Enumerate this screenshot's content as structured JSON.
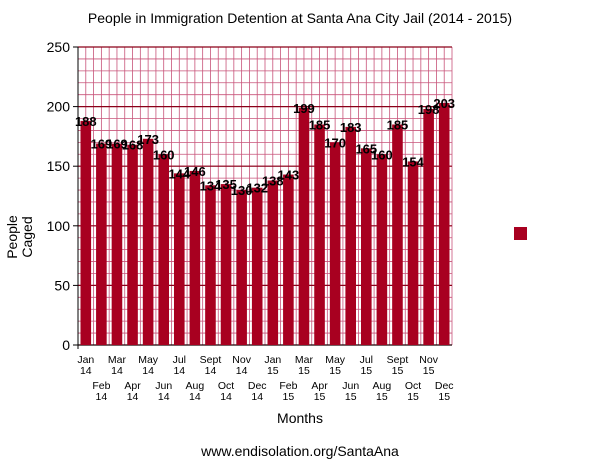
{
  "chart_data": {
    "type": "bar",
    "title": "People in Immigration Detention at Santa Ana City Jail (2014 - 2015)",
    "xlabel": "Months",
    "ylabel": [
      "People",
      "Caged"
    ],
    "source": "www.endisolation.org/SantaAna",
    "categories": [
      [
        "Jan",
        "14"
      ],
      [
        "Feb",
        "14"
      ],
      [
        "Mar",
        "14"
      ],
      [
        "Apr",
        "14"
      ],
      [
        "May",
        "14"
      ],
      [
        "Jun",
        "14"
      ],
      [
        "Jul",
        "14"
      ],
      [
        "Aug",
        "14"
      ],
      [
        "Sept",
        "14"
      ],
      [
        "Oct",
        "14"
      ],
      [
        "Nov",
        "14"
      ],
      [
        "Dec",
        "14"
      ],
      [
        "Jan",
        "15"
      ],
      [
        "Feb",
        "15"
      ],
      [
        "Mar",
        "15"
      ],
      [
        "Apr",
        "15"
      ],
      [
        "May",
        "15"
      ],
      [
        "Jun",
        "15"
      ],
      [
        "Jul",
        "15"
      ],
      [
        "Aug",
        "15"
      ],
      [
        "Sept",
        "15"
      ],
      [
        "Oct",
        "15"
      ],
      [
        "Nov",
        "15"
      ],
      [
        "Dec",
        "15"
      ]
    ],
    "values": [
      188,
      169,
      169,
      168,
      173,
      160,
      144,
      146,
      134,
      135,
      130,
      132,
      138,
      143,
      199,
      185,
      170,
      183,
      165,
      160,
      185,
      154,
      198,
      203
    ],
    "ylim": [
      0,
      250
    ],
    "yticks": [
      0,
      50,
      100,
      150,
      200,
      250
    ],
    "grid": true,
    "legend_position": "right",
    "colors": {
      "bar": "#a80020",
      "grid": "#c8547a",
      "major_grid": "#8a0018"
    }
  }
}
